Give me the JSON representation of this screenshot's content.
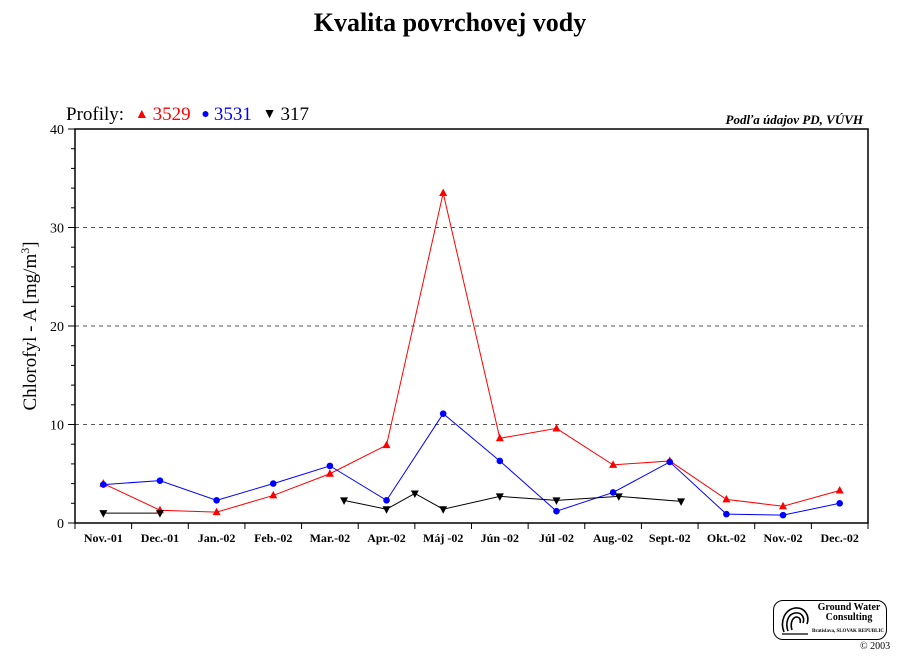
{
  "chart_data": {
    "type": "line",
    "title": "Kvalita povrchovej vody",
    "ylabel": "Chlorofyl - A [mg/m",
    "ylabel_sup": "3",
    "ylabel_close": "]",
    "ylim": [
      0,
      40
    ],
    "yticks": [
      0,
      10,
      20,
      30,
      40
    ],
    "grid": "horizontal dashed at 10, 20, 30",
    "legend_position": "top-left",
    "legend_title": "Profily:",
    "source_note": "Podľa údajov PD, VÚVH",
    "categories": [
      "Nov.-01",
      "Dec.-01",
      "Jan.-02",
      "Feb.-02",
      "Mar.-02",
      "Apr.-02",
      "Máj -02",
      "Jún -02",
      "Júl -02",
      "Aug.-02",
      "Sept.-02",
      "Okt.-02",
      "Nov.-02",
      "Dec.-02"
    ],
    "series": [
      {
        "name": "3529",
        "color": "#ff0000",
        "marker": "triangle-up",
        "points": [
          [
            0.5,
            4.0
          ],
          [
            1.5,
            1.3
          ],
          [
            2.5,
            1.1
          ],
          [
            3.5,
            2.8
          ],
          [
            4.5,
            5.0
          ],
          [
            5.5,
            7.9
          ],
          [
            6.5,
            33.5
          ],
          [
            7.5,
            8.6
          ],
          [
            8.5,
            9.6
          ],
          [
            9.5,
            5.9
          ],
          [
            10.5,
            6.3
          ],
          [
            11.5,
            2.4
          ],
          [
            12.5,
            1.7
          ],
          [
            13.5,
            3.3
          ]
        ]
      },
      {
        "name": "3531",
        "color": "#0000ff",
        "marker": "circle",
        "points": [
          [
            0.5,
            3.9
          ],
          [
            1.5,
            4.3
          ],
          [
            2.5,
            2.3
          ],
          [
            3.5,
            4.0
          ],
          [
            4.5,
            5.8
          ],
          [
            5.5,
            2.3
          ],
          [
            6.5,
            11.1
          ],
          [
            7.5,
            6.3
          ],
          [
            8.5,
            1.2
          ],
          [
            9.5,
            3.1
          ],
          [
            10.5,
            6.2
          ],
          [
            11.5,
            0.9
          ],
          [
            12.5,
            0.8
          ],
          [
            13.5,
            2.0
          ]
        ]
      },
      {
        "name": "317",
        "color": "#000000",
        "marker": "triangle-down",
        "segments": [
          [
            [
              0.5,
              1.0
            ],
            [
              1.5,
              1.0
            ]
          ],
          [
            [
              4.75,
              2.3
            ],
            [
              5.5,
              1.4
            ],
            [
              6.0,
              3.0
            ],
            [
              6.5,
              1.4
            ],
            [
              7.5,
              2.7
            ],
            [
              8.5,
              2.3
            ],
            [
              9.6,
              2.7
            ],
            [
              10.7,
              2.2
            ]
          ]
        ]
      }
    ]
  },
  "logo": {
    "name_line1": "Ground Water",
    "name_line2": "Consulting",
    "address": "Bratislava, SLOVAK REPUBLIC"
  },
  "copyright": "© 2003"
}
